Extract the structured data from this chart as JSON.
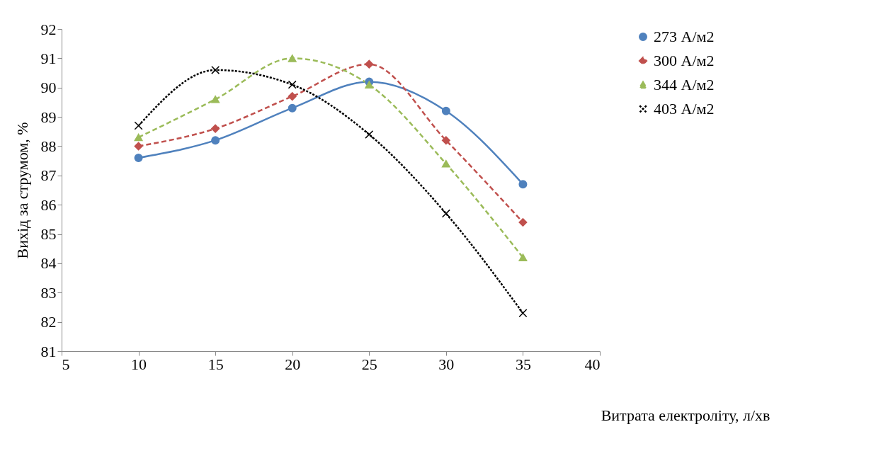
{
  "chart_data": {
    "type": "line",
    "xlabel": "Витрата електроліту, л/хв",
    "ylabel": "Вихід за струмом, %",
    "x": [
      10,
      15,
      20,
      25,
      30,
      35
    ],
    "series": [
      {
        "name": "273 А/м2",
        "color": "#4f81bd",
        "marker": "circle",
        "line_style": "solid",
        "values": [
          87.6,
          88.2,
          89.3,
          90.2,
          89.2,
          86.7
        ]
      },
      {
        "name": "300 А/м2",
        "color": "#c0504d",
        "marker": "diamond",
        "line_style": "dashed",
        "values": [
          88.0,
          88.6,
          89.7,
          90.8,
          88.2,
          85.4
        ]
      },
      {
        "name": "344 А/м2",
        "color": "#9bbb59",
        "marker": "triangle",
        "line_style": "dashed",
        "values": [
          88.3,
          89.6,
          91.0,
          90.1,
          87.4,
          84.2
        ]
      },
      {
        "name": "403 А/м2",
        "color": "#000000",
        "marker": "cross",
        "line_style": "dotted",
        "values": [
          88.7,
          90.6,
          90.1,
          88.4,
          85.7,
          82.3
        ]
      }
    ],
    "xlim": [
      5,
      40
    ],
    "xticks": [
      5,
      10,
      15,
      20,
      25,
      30,
      35,
      40
    ],
    "ylim": [
      81,
      92
    ],
    "yticks": [
      81,
      82,
      83,
      84,
      85,
      86,
      87,
      88,
      89,
      90,
      91,
      92
    ],
    "grid": false,
    "legend": "right"
  }
}
